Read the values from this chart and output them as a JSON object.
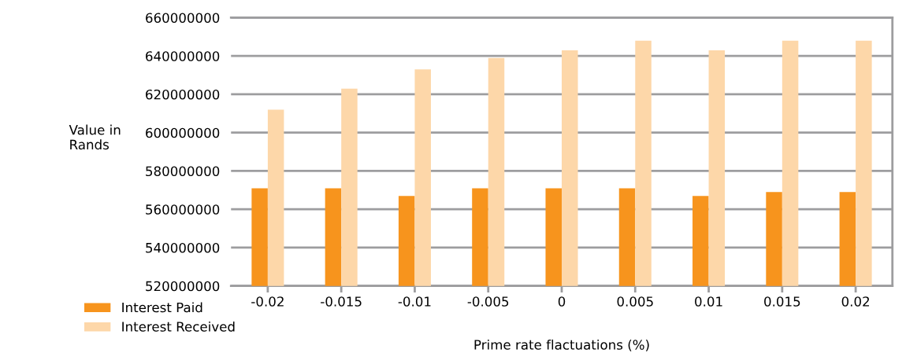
{
  "chart_data": {
    "type": "bar",
    "xlabel": "Prime rate flactuations (%)",
    "ylabel": "Value in\nRands",
    "categories": [
      "-0.02",
      "-0.015",
      "-0.01",
      "-0.005",
      "0",
      "0.005",
      "0.01",
      "0.015",
      "0.02"
    ],
    "series": [
      {
        "name": "Interest Paid",
        "color": "#f7941d",
        "values": [
          571000000,
          571000000,
          567000000,
          571000000,
          571000000,
          571000000,
          567000000,
          569000000,
          569000000
        ]
      },
      {
        "name": "Interest Received",
        "color": "#fdd7a9",
        "values": [
          612000000,
          623000000,
          633000000,
          639000000,
          643000000,
          648000000,
          643000000,
          648000000,
          648000000
        ]
      }
    ],
    "ylim": [
      520000000,
      660000000
    ],
    "yticks": [
      520000000,
      540000000,
      560000000,
      580000000,
      600000000,
      620000000,
      640000000,
      660000000
    ],
    "grid": "y",
    "legend": "bottom left"
  }
}
